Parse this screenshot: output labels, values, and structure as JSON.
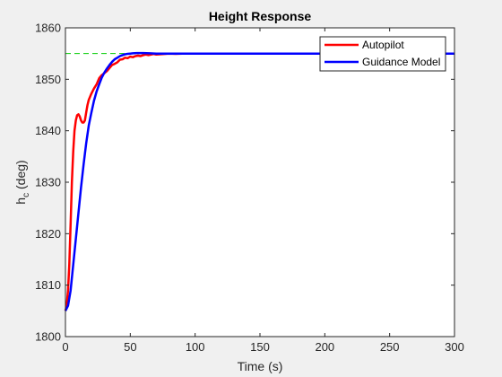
{
  "colors": {
    "figure_background": "#f0f0f0",
    "axes_background": "#ffffff",
    "autopilot": "#ff0000",
    "guidance_model": "#0000ff",
    "reference_line": "#00cc00"
  },
  "chart_data": {
    "type": "line",
    "title": "Height Response",
    "xlabel": "Time (s)",
    "ylabel_main": "h",
    "ylabel_sub": "c",
    "ylabel_unit": " (deg)",
    "xlim": [
      0,
      300
    ],
    "ylim": [
      1800,
      1860
    ],
    "xticks": [
      0,
      50,
      100,
      150,
      200,
      250,
      300
    ],
    "yticks": [
      1800,
      1810,
      1820,
      1830,
      1840,
      1850,
      1860
    ],
    "grid": false,
    "legend_position": "top-right",
    "reference_line": {
      "y": 1855,
      "style": "dashed",
      "color": "#00cc00"
    },
    "series": [
      {
        "name": "Autopilot",
        "color": "#ff0000",
        "x": [
          0,
          1,
          2,
          3,
          4,
          5,
          6,
          7,
          8,
          9,
          10,
          11,
          12,
          13,
          14,
          15,
          16,
          17,
          18,
          20,
          22,
          24,
          26,
          28,
          30,
          32,
          34,
          36,
          38,
          40,
          42,
          44,
          46,
          48,
          50,
          52,
          54,
          56,
          58,
          60,
          62,
          64,
          66,
          68,
          70,
          75,
          80,
          85,
          90,
          100,
          120,
          150,
          200,
          250,
          300
        ],
        "y": [
          1805,
          1806,
          1809,
          1814,
          1822,
          1830,
          1836,
          1840,
          1842,
          1843,
          1843.2,
          1842.8,
          1842,
          1841.6,
          1841.6,
          1842,
          1843.5,
          1845,
          1846,
          1847.2,
          1848.2,
          1849,
          1850.2,
          1850.8,
          1851.2,
          1851.6,
          1852.2,
          1852.8,
          1853,
          1853.3,
          1853.8,
          1853.9,
          1854.2,
          1854.1,
          1854.4,
          1854.3,
          1854.5,
          1854.6,
          1854.5,
          1854.7,
          1854.8,
          1854.7,
          1854.8,
          1854.9,
          1854.8,
          1854.9,
          1855,
          1854.95,
          1855,
          1855,
          1855,
          1855,
          1855,
          1855,
          1855
        ]
      },
      {
        "name": "Guidance Model",
        "color": "#0000ff",
        "x": [
          0,
          2,
          4,
          6,
          8,
          10,
          12,
          14,
          16,
          18,
          20,
          22,
          24,
          26,
          28,
          30,
          32,
          34,
          36,
          38,
          40,
          42,
          44,
          46,
          48,
          50,
          52,
          55,
          58,
          60,
          65,
          70,
          80,
          100,
          150,
          200,
          250,
          300
        ],
        "y": [
          1805,
          1806,
          1809,
          1814,
          1819,
          1824,
          1829,
          1833.5,
          1837.5,
          1841,
          1843.5,
          1845.8,
          1847.6,
          1849,
          1850.3,
          1851.3,
          1852.1,
          1852.8,
          1853.4,
          1853.9,
          1854.2,
          1854.5,
          1854.7,
          1854.85,
          1854.95,
          1855,
          1855.05,
          1855.1,
          1855.1,
          1855.1,
          1855.05,
          1855,
          1855,
          1855,
          1855,
          1855,
          1855,
          1855
        ]
      }
    ]
  }
}
